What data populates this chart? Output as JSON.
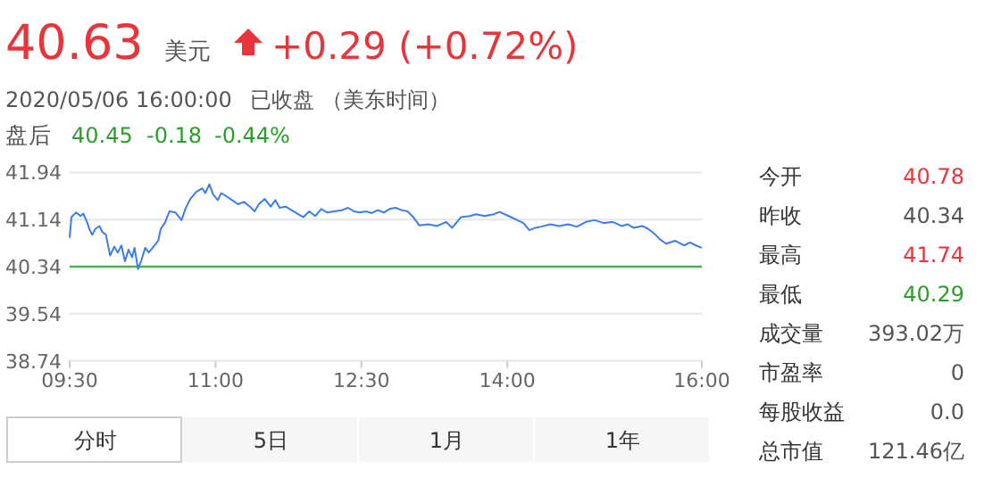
{
  "chart_data": [
    {
      "type": "line",
      "title": "40.63",
      "annotations": [
        "美元",
        "+0.29 (+0.72%)",
        "2020/05/06 16:00:00",
        "已收盘 （美东时间）",
        "盘后",
        "40.45",
        "-0.18",
        "-0.44%",
        "分时",
        "5日",
        "1月",
        "1年"
      ],
      "xlim": [
        9.5,
        16
      ],
      "xticks": [
        {
          "value": 9.5,
          "label": "09:30"
        },
        {
          "value": 11,
          "label": "11:00"
        },
        {
          "value": 12.5,
          "label": "12:30"
        },
        {
          "value": 14,
          "label": "14:00"
        },
        {
          "value": 16,
          "label": "16:00"
        }
      ],
      "ylim": [
        38.74,
        41.94
      ],
      "yticks": [
        38.74,
        39.54,
        40.34,
        41.14,
        41.94
      ],
      "grid": "y",
      "ref_lines": [
        {
          "axis": "y",
          "value": 40.34,
          "color": "#4caf50"
        }
      ],
      "series": [
        {
          "color": "#3b7de9",
          "x": [
            9.5,
            9.518,
            9.567,
            9.61,
            9.641,
            9.683,
            9.702,
            9.732,
            9.763,
            9.806,
            9.836,
            9.873,
            9.916,
            9.959,
            9.995,
            10.032,
            10.069,
            10.105,
            10.142,
            10.167,
            10.203,
            10.234,
            10.277,
            10.313,
            10.362,
            10.411,
            10.436,
            10.478,
            10.527,
            10.588,
            10.65,
            10.692,
            10.741,
            10.802,
            10.864,
            10.894,
            10.937,
            10.974,
            11.023,
            11.059,
            11.108,
            11.169,
            11.231,
            11.292,
            11.353,
            11.402,
            11.445,
            11.506,
            11.567,
            11.616,
            11.659,
            11.72,
            11.781,
            11.842,
            11.903,
            11.964,
            12.025,
            12.087,
            12.148,
            12.221,
            12.301,
            12.362,
            12.423,
            12.484,
            12.545,
            12.606,
            12.667,
            12.729,
            12.79,
            12.851,
            12.912,
            12.973,
            13.034,
            13.096,
            13.187,
            13.279,
            13.371,
            13.432,
            13.524,
            13.615,
            13.677,
            13.768,
            13.86,
            13.921,
            14.013,
            14.104,
            14.166,
            14.227,
            14.288,
            14.349,
            14.441,
            14.533,
            14.624,
            14.716,
            14.808,
            14.899,
            14.991,
            15.083,
            15.175,
            15.236,
            15.297,
            15.389,
            15.45,
            15.511,
            15.572,
            15.633,
            15.725,
            15.817,
            15.878,
            15.939,
            16.0
          ],
          "values": [
            40.83,
            41.18,
            41.26,
            41.2,
            41.24,
            41.08,
            40.98,
            40.88,
            40.98,
            41.03,
            40.93,
            40.88,
            40.53,
            40.68,
            40.58,
            40.7,
            40.43,
            40.63,
            40.5,
            40.66,
            40.3,
            40.43,
            40.66,
            40.58,
            40.68,
            40.78,
            40.98,
            41.08,
            41.28,
            41.26,
            41.13,
            41.33,
            41.49,
            41.61,
            41.67,
            41.59,
            41.74,
            41.57,
            41.47,
            41.59,
            41.54,
            41.47,
            41.4,
            41.44,
            41.36,
            41.28,
            41.4,
            41.49,
            41.36,
            41.47,
            41.34,
            41.36,
            41.3,
            41.24,
            41.18,
            41.28,
            41.2,
            41.32,
            41.26,
            41.28,
            41.3,
            41.34,
            41.28,
            41.26,
            41.28,
            41.25,
            41.3,
            41.26,
            41.32,
            41.34,
            41.3,
            41.28,
            41.18,
            41.04,
            41.06,
            41.03,
            41.1,
            41.0,
            41.18,
            41.2,
            41.23,
            41.2,
            41.23,
            41.27,
            41.2,
            41.13,
            41.08,
            40.96,
            41.0,
            41.02,
            41.06,
            41.03,
            41.06,
            41.02,
            41.1,
            41.13,
            41.08,
            41.1,
            41.03,
            41.06,
            41.0,
            41.03,
            40.98,
            40.9,
            40.8,
            40.73,
            40.78,
            40.7,
            40.75,
            40.7,
            40.66
          ]
        }
      ]
    },
    {
      "type": "other",
      "annotations": [
        "今开",
        "40.78",
        "昨收",
        "40.34",
        "最高",
        "41.74",
        "最低",
        "40.29",
        "成交量",
        "393.02万",
        "市盈率",
        "0",
        "每股收益",
        "0.0",
        "总市值",
        "121.46亿"
      ],
      "colors": [
        "#333333",
        "#e8343a",
        "#333333",
        "#555555",
        "#333333",
        "#e8343a",
        "#333333",
        "#2a9d2a",
        "#333333",
        "#555555",
        "#333333",
        "#555555",
        "#333333",
        "#555555",
        "#333333",
        "#555555"
      ]
    }
  ]
}
